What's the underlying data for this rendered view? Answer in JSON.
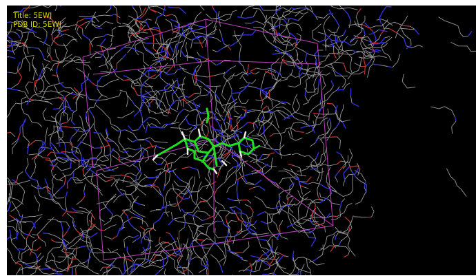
{
  "viewer": {
    "title_line": "Title: 5EWJ",
    "pdb_line": "PDB ID: 5EWJ",
    "label_color": "#d8d800",
    "background_color": "#000000",
    "box_color": "#c040c0",
    "ligand_color": "#22dd22",
    "atom_colors": {
      "carbon": "#9a9a9a",
      "nitrogen": "#3030e0",
      "oxygen": "#d03030",
      "sulfur": "#d0d030",
      "hydrogen": "#f0f0f0"
    }
  }
}
